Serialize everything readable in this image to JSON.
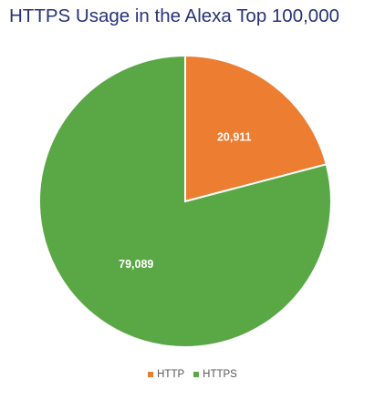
{
  "chart_data": {
    "type": "pie",
    "title": "HTTPS Usage in the Alexa Top 100,000",
    "categories": [
      "HTTP",
      "HTTPS"
    ],
    "values": [
      20911,
      79089
    ],
    "data_labels": [
      "20,911",
      "79,089"
    ],
    "colors": [
      "#ed7d31",
      "#5aa746"
    ],
    "legend_position": "bottom",
    "start_angle": "12 o'clock",
    "direction": "clockwise"
  }
}
